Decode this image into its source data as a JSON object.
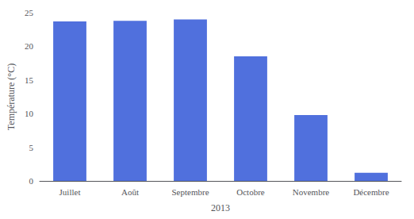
{
  "chart_data": {
    "type": "bar",
    "categories": [
      "Juillet",
      "Août",
      "Septembre",
      "Octobre",
      "Novembre",
      "Décembre"
    ],
    "values": [
      23.7,
      23.8,
      24.0,
      18.5,
      9.8,
      1.2
    ],
    "xlabel": "2013",
    "ylabel": "Température (°C)",
    "ylim": [
      0,
      25
    ],
    "yticks": [
      0,
      5,
      10,
      15,
      20,
      25
    ],
    "grid": false
  }
}
